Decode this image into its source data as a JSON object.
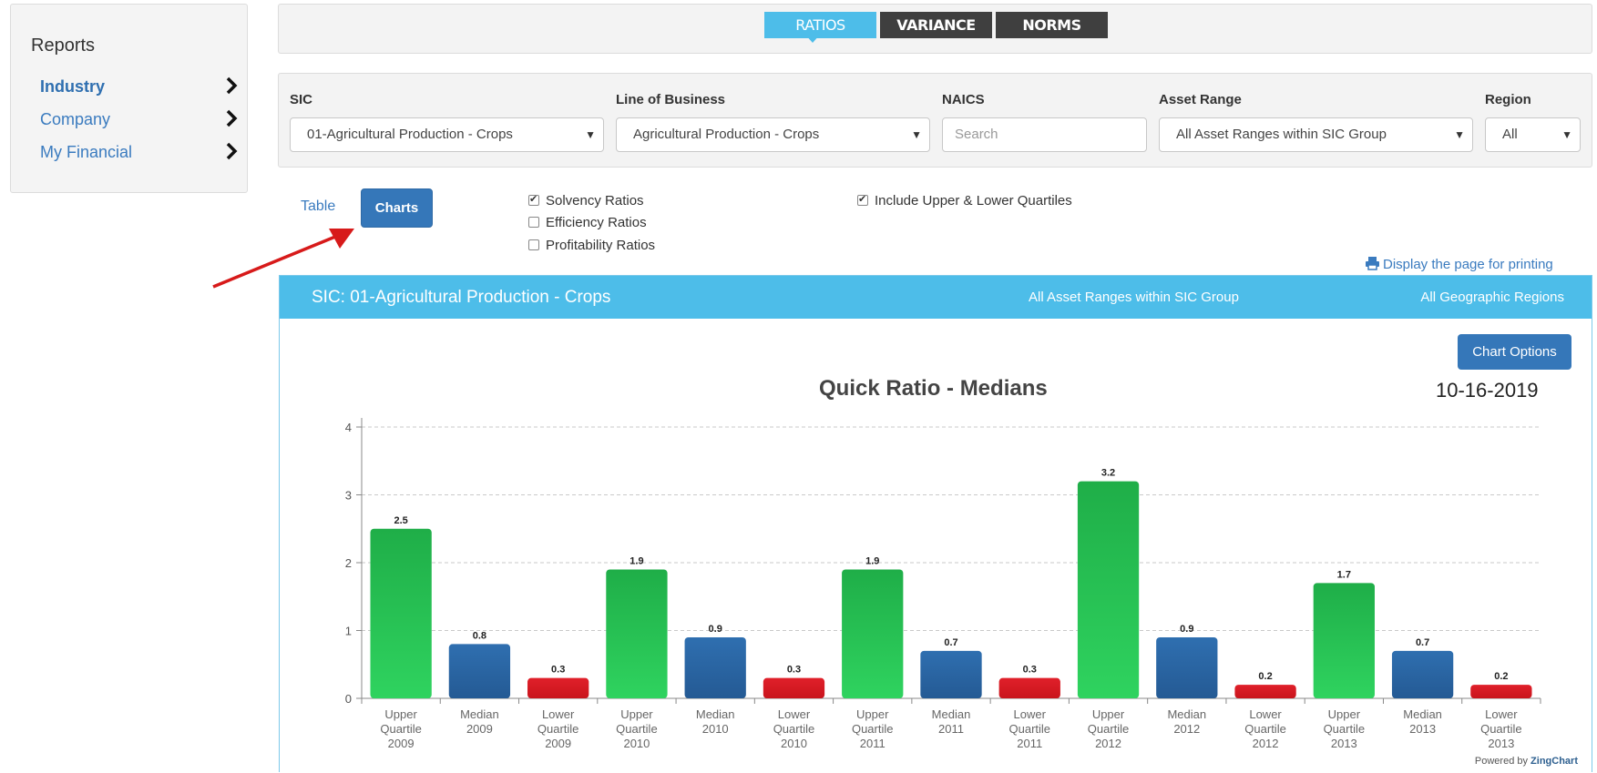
{
  "sidebar": {
    "title": "Reports",
    "items": [
      {
        "label": "Industry",
        "active": true
      },
      {
        "label": "Company",
        "active": false
      },
      {
        "label": "My Financial",
        "active": false
      }
    ]
  },
  "tabs": [
    {
      "label": "RATIOS",
      "active": true
    },
    {
      "label": "VARIANCE",
      "active": false
    },
    {
      "label": "NORMS",
      "active": false
    }
  ],
  "filters": {
    "sic": {
      "label": "SIC",
      "value": "01-Agricultural Production - Crops"
    },
    "lob": {
      "label": "Line of Business",
      "value": "Agricultural Production - Crops"
    },
    "naics": {
      "label": "NAICS",
      "placeholder": "Search"
    },
    "asset": {
      "label": "Asset Range",
      "value": "All Asset Ranges within SIC Group"
    },
    "region": {
      "label": "Region",
      "value": "All"
    }
  },
  "view": {
    "table_label": "Table",
    "charts_label": "Charts",
    "active": "Charts"
  },
  "checkboxes": [
    {
      "label": "Solvency Ratios",
      "checked": true
    },
    {
      "label": "Efficiency Ratios",
      "checked": false
    },
    {
      "label": "Profitability Ratios",
      "checked": false
    },
    {
      "label": "Include Upper & Lower Quartiles",
      "checked": true
    }
  ],
  "print_link": "Display the page for printing",
  "panel": {
    "sic": "SIC: 01-Agricultural Production - Crops",
    "asset_range": "All Asset Ranges within SIC Group",
    "region": "All Geographic Regions",
    "chart_options_label": "Chart Options",
    "date": "10-16-2019"
  },
  "powered_by": {
    "prefix": "Powered by",
    "brand": "ZingChart"
  },
  "colors": {
    "upper": "#2ec35a",
    "median": "#2d6aa8",
    "lower": "#dd2027",
    "accent": "#4dbde9",
    "button": "#3577b9"
  },
  "chart_data": {
    "type": "bar",
    "title": "Quick Ratio - Medians",
    "categories": [
      [
        "Upper",
        "Quartile",
        "2009"
      ],
      [
        "Median",
        "2009"
      ],
      [
        "Lower",
        "Quartile",
        "2009"
      ],
      [
        "Upper",
        "Quartile",
        "2010"
      ],
      [
        "Median",
        "2010"
      ],
      [
        "Lower",
        "Quartile",
        "2010"
      ],
      [
        "Upper",
        "Quartile",
        "2011"
      ],
      [
        "Median",
        "2011"
      ],
      [
        "Lower",
        "Quartile",
        "2011"
      ],
      [
        "Upper",
        "Quartile",
        "2012"
      ],
      [
        "Median",
        "2012"
      ],
      [
        "Lower",
        "Quartile",
        "2012"
      ],
      [
        "Upper",
        "Quartile",
        "2013"
      ],
      [
        "Median",
        "2013"
      ],
      [
        "Lower",
        "Quartile",
        "2013"
      ]
    ],
    "values": [
      2.5,
      0.8,
      0.3,
      1.9,
      0.9,
      0.3,
      1.9,
      0.7,
      0.3,
      3.2,
      0.9,
      0.2,
      1.7,
      0.7,
      0.2
    ],
    "kinds": [
      "upper",
      "median",
      "lower",
      "upper",
      "median",
      "lower",
      "upper",
      "median",
      "lower",
      "upper",
      "median",
      "lower",
      "upper",
      "median",
      "lower"
    ],
    "ylim": [
      0,
      4
    ],
    "yticks": [
      0,
      1,
      2,
      3,
      4
    ],
    "grid": true,
    "xlabel": "",
    "ylabel": ""
  }
}
